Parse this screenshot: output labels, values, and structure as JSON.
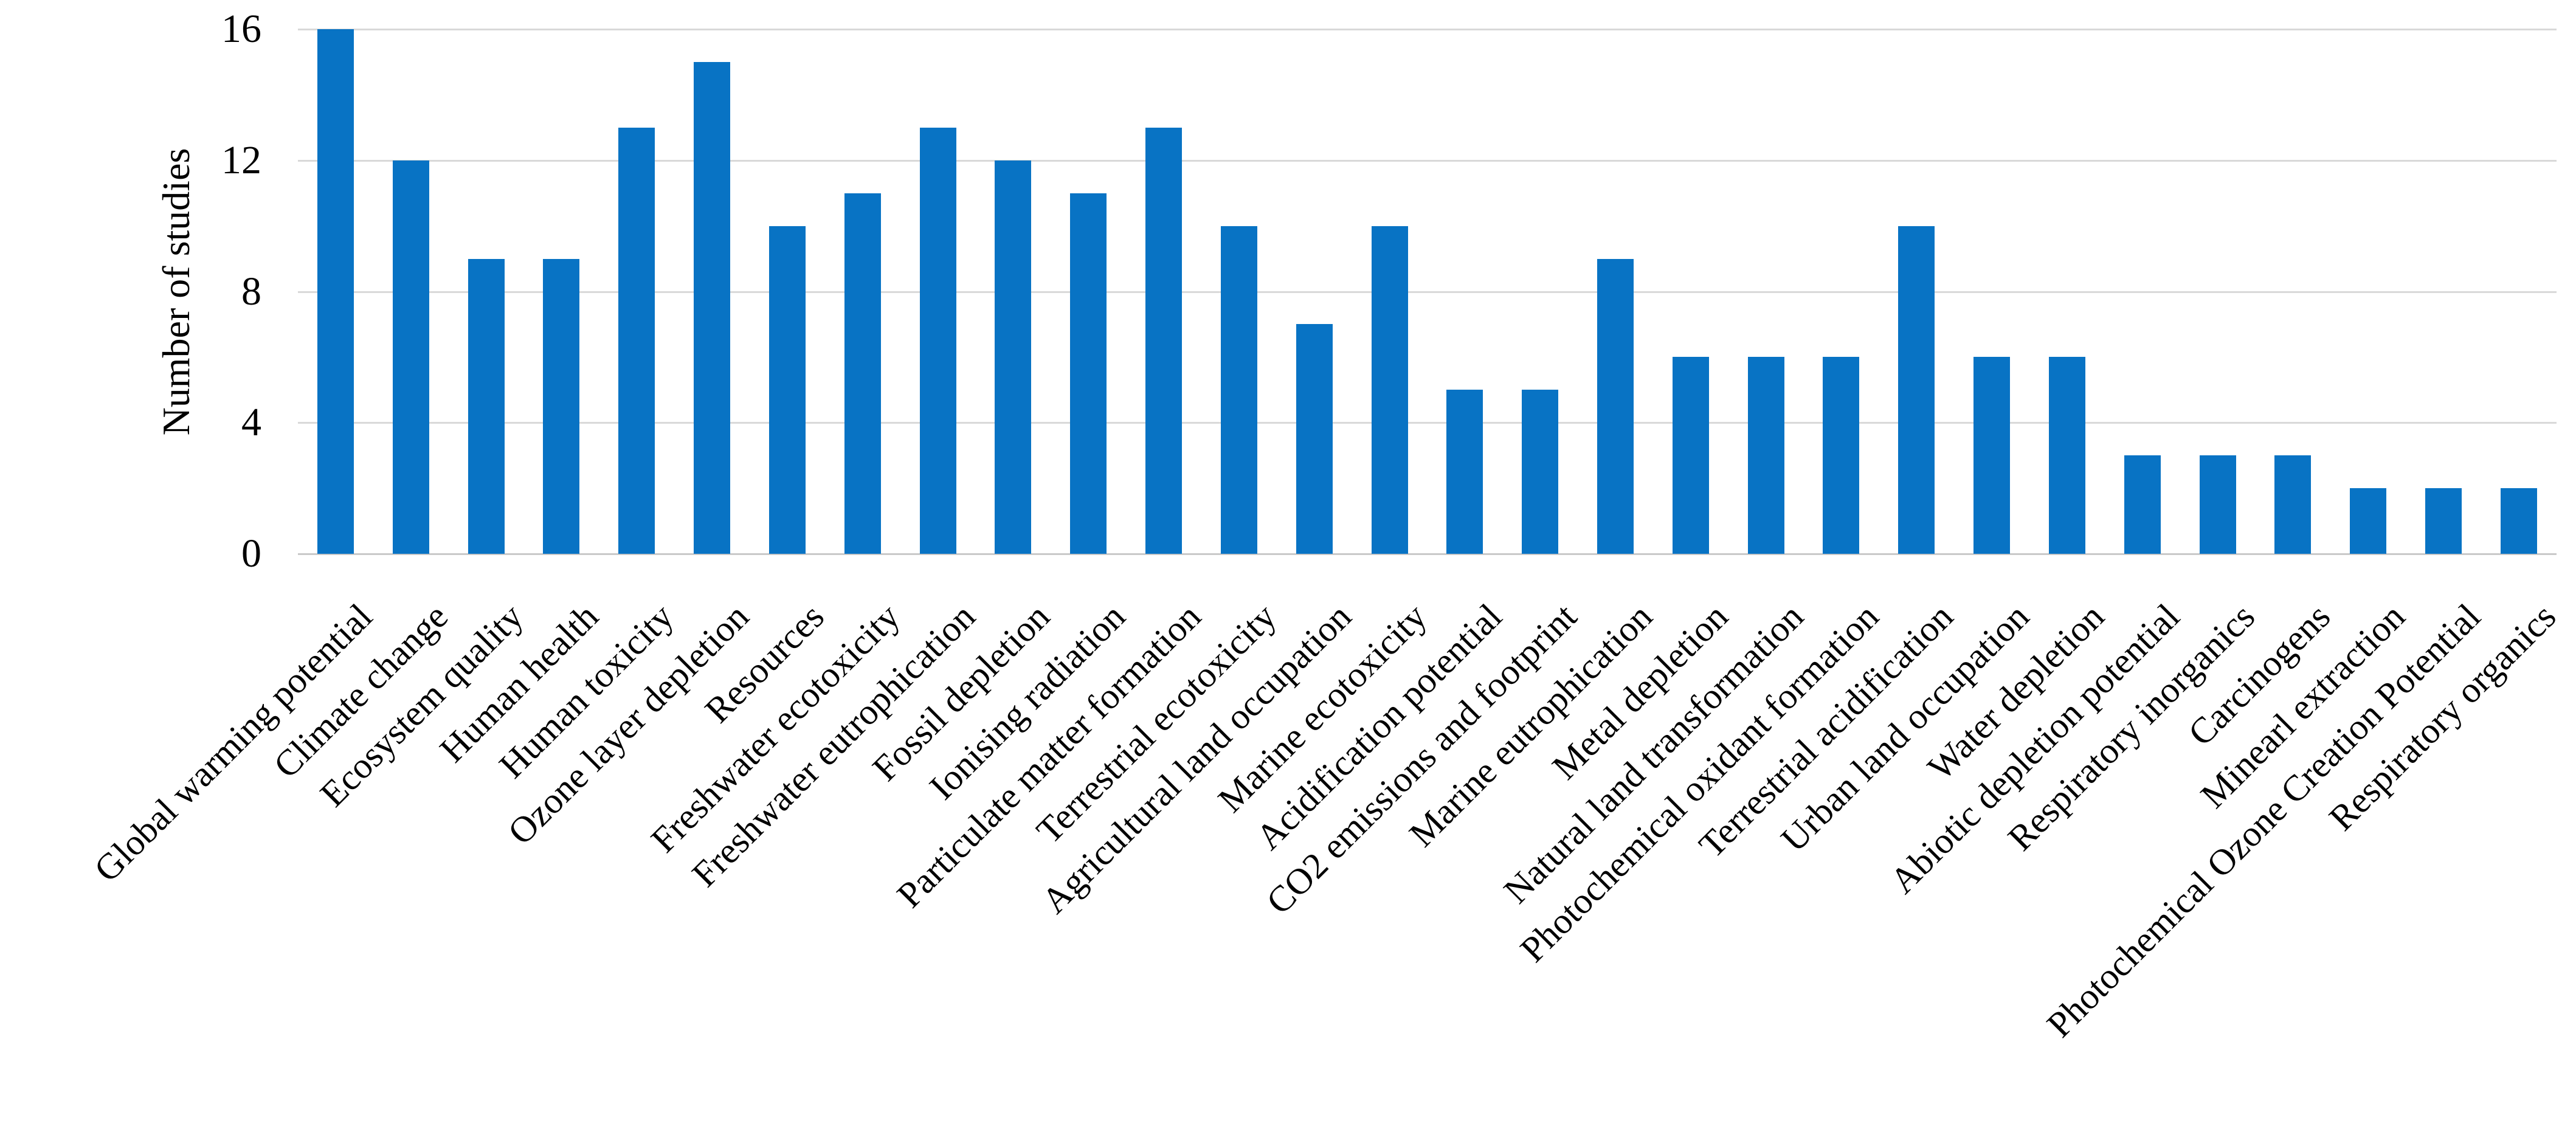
{
  "chart_data": {
    "type": "bar",
    "title": "",
    "xlabel": "",
    "ylabel": "Number of studies",
    "ylim": [
      0,
      16
    ],
    "yticks": [
      0,
      4,
      8,
      12,
      16
    ],
    "grid": "horizontal",
    "legend_position": "none",
    "x_label_rotation_deg": 45,
    "bar_color": "#0873c4",
    "gridline_color": "#d9d9d9",
    "axis_line_color": "#c9c9c9",
    "text_color": "#000000",
    "background_color": "#ffffff",
    "categories": [
      "Global warming potential",
      "Climate change",
      "Ecosystem quality",
      "Human health",
      "Human toxicity",
      "Ozone layer depletion",
      "Resources",
      "Freshwater ecotoxicity",
      "Freshwater eutrophication",
      "Fossil depletion",
      "Ionising radiation",
      "Particulate matter formation",
      "Terrestrial ecotoxicity",
      "Agricultural land occupation",
      "Marine ecotoxicity",
      "Acidification potential",
      "CO2 emissions and footprint",
      "Marine eutrophication",
      "Metal depletion",
      "Natural land transformation",
      "Photochemical oxidant formation",
      "Terrestrial acidification",
      "Urban land occupation",
      "Water depletion",
      "Abiotic depletion potential",
      "Respiratory inorganics",
      "Carcinogens",
      "Minearl extraction",
      "Photochemical Ozone Creation Potential",
      "Respiratory organics"
    ],
    "values": [
      16,
      12,
      9,
      9,
      13,
      15,
      10,
      11,
      13,
      12,
      11,
      13,
      10,
      7,
      10,
      5,
      5,
      9,
      6,
      6,
      6,
      10,
      6,
      6,
      3,
      3,
      3,
      2,
      2,
      2
    ]
  }
}
